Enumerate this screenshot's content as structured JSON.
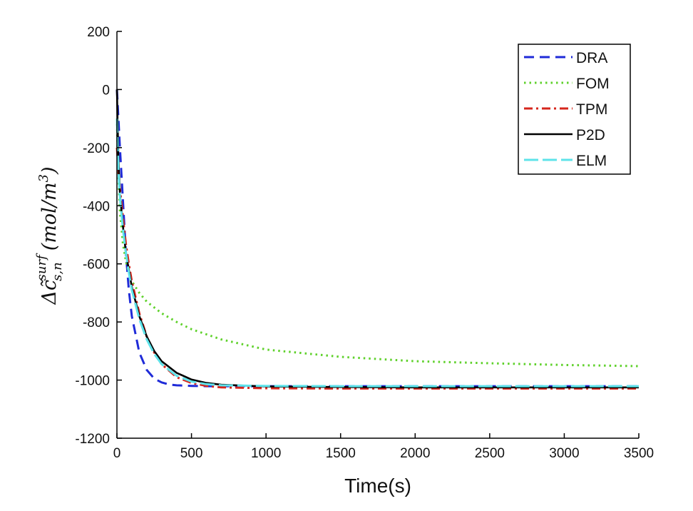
{
  "chart_data": {
    "type": "line",
    "title": "",
    "xlabel": "Time(s)",
    "ylabel": "Δc̃",
    "ylabel_sup": "surf",
    "ylabel_sub": "s,n",
    "ylabel_units": "(mol/m",
    "ylabel_units_sup": "3",
    "ylabel_close": ")",
    "xlim": [
      0,
      3500
    ],
    "ylim": [
      -1200,
      200
    ],
    "xticks": [
      0,
      500,
      1000,
      1500,
      2000,
      2500,
      3000,
      3500
    ],
    "yticks": [
      200,
      0,
      -200,
      -400,
      -600,
      -800,
      -1000,
      -1200
    ],
    "legend_position": "top-right",
    "series": [
      {
        "name": "DRA",
        "color": "#1f2bd8",
        "dash": "dashed",
        "x": [
          0,
          10,
          20,
          40,
          60,
          80,
          100,
          150,
          200,
          250,
          300,
          350,
          400,
          500,
          600,
          700,
          1000,
          1500,
          2000,
          2500,
          3000,
          3500
        ],
        "y": [
          0,
          -100,
          -200,
          -380,
          -560,
          -690,
          -780,
          -905,
          -965,
          -995,
          -1008,
          -1015,
          -1018,
          -1020,
          -1021,
          -1021,
          -1021,
          -1021,
          -1021,
          -1021,
          -1021,
          -1021
        ]
      },
      {
        "name": "FOM",
        "color": "#5fd12b",
        "dash": "dotted",
        "x": [
          0,
          5,
          10,
          20,
          40,
          60,
          80,
          100,
          150,
          200,
          300,
          400,
          500,
          700,
          1000,
          1500,
          2000,
          2500,
          3000,
          3500
        ],
        "y": [
          -100,
          -220,
          -300,
          -420,
          -530,
          -590,
          -630,
          -660,
          -700,
          -730,
          -770,
          -800,
          -825,
          -860,
          -895,
          -920,
          -935,
          -942,
          -948,
          -952
        ]
      },
      {
        "name": "TPM",
        "color": "#d6261c",
        "dash": "dashdot",
        "x": [
          0,
          10,
          20,
          40,
          60,
          80,
          100,
          150,
          200,
          250,
          300,
          400,
          500,
          600,
          700,
          1000,
          1500,
          2000,
          2500,
          3000,
          3500
        ],
        "y": [
          -200,
          -280,
          -340,
          -440,
          -530,
          -600,
          -660,
          -770,
          -850,
          -905,
          -945,
          -990,
          -1010,
          -1020,
          -1025,
          -1028,
          -1029,
          -1029,
          -1029,
          -1029,
          -1029
        ]
      },
      {
        "name": "P2D",
        "color": "#000000",
        "dash": "solid",
        "x": [
          0,
          5,
          10,
          20,
          40,
          60,
          80,
          100,
          150,
          200,
          250,
          300,
          400,
          500,
          600,
          700,
          1000,
          1500,
          2000,
          2500,
          3000,
          3500
        ],
        "y": [
          0,
          -120,
          -240,
          -360,
          -470,
          -560,
          -620,
          -680,
          -780,
          -850,
          -900,
          -935,
          -975,
          -998,
          -1010,
          -1016,
          -1022,
          -1024,
          -1025,
          -1025,
          -1025,
          -1025
        ]
      },
      {
        "name": "ELM",
        "color": "#5ee3ea",
        "dash": "longdash",
        "x": [
          0,
          5,
          10,
          20,
          40,
          60,
          80,
          100,
          150,
          200,
          250,
          300,
          400,
          500,
          600,
          700,
          1000,
          1500,
          2000,
          2500,
          3000,
          3500
        ],
        "y": [
          -100,
          -200,
          -280,
          -370,
          -480,
          -560,
          -630,
          -690,
          -790,
          -860,
          -910,
          -945,
          -985,
          -1005,
          -1014,
          -1018,
          -1020,
          -1021,
          -1021,
          -1021,
          -1021,
          -1021
        ]
      }
    ]
  }
}
